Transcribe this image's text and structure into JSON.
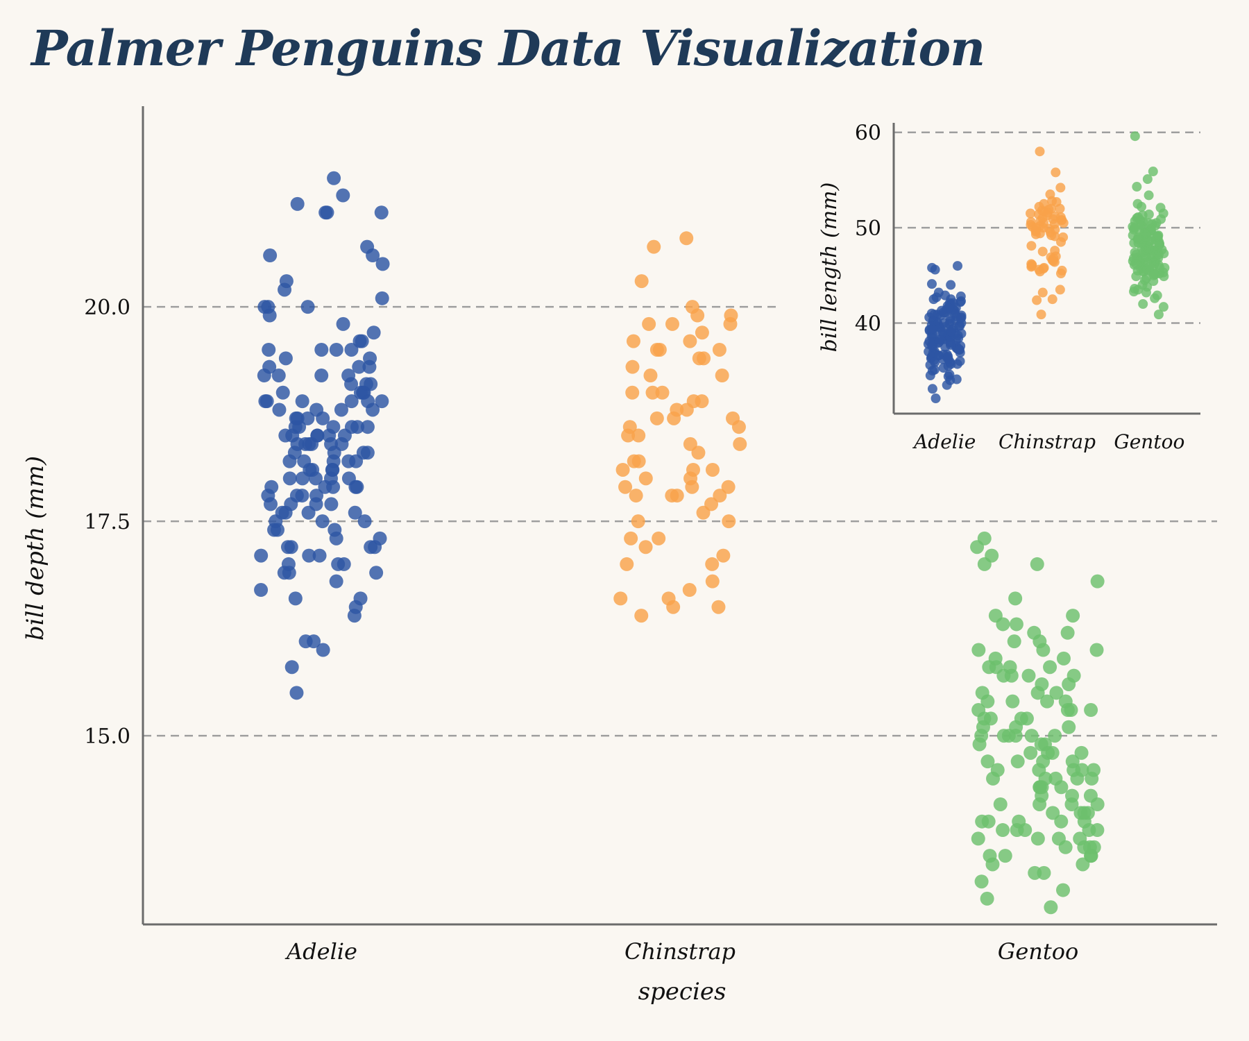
{
  "title": "Palmer Penguins Data Visualization",
  "colors": {
    "background": "#faf7f2",
    "title": "#1f3a58",
    "Adelie": "#2d56a3",
    "Chinstrap": "#f9a24b",
    "Gentoo": "#6cc06c",
    "axis": "#6b6b6b",
    "grid": "#9e9e9e"
  },
  "chart_data": [
    {
      "type": "scatter",
      "title": "",
      "xlabel": "species",
      "ylabel": "bill depth (mm)",
      "categories": [
        "Adelie",
        "Chinstrap",
        "Gentoo"
      ],
      "ylim": [
        12.8,
        22.0
      ],
      "yticks": [
        15.0,
        17.5,
        20.0
      ],
      "ytick_labels": [
        "15.0",
        "17.5",
        "20.0"
      ],
      "grid": "horizontal dashed",
      "series": [
        {
          "values": [
            21.5,
            21.2,
            21.1,
            21.1,
            21.3,
            21.1,
            20.7,
            20.6,
            20.6,
            20.5,
            20.3,
            20.2,
            20.1,
            20.0,
            20.0,
            20.0,
            19.9,
            19.8,
            19.7,
            19.6,
            19.5,
            19.5,
            19.5,
            19.5,
            19.4,
            19.4,
            19.3,
            19.3,
            19.2,
            19.2,
            19.2,
            19.1,
            19.1,
            19.0,
            19.0,
            18.9,
            18.9,
            18.9,
            18.8,
            18.8,
            18.7,
            18.7,
            18.6,
            18.6,
            18.6,
            18.5,
            18.5,
            18.5,
            18.4,
            18.4,
            18.4,
            18.3,
            18.3,
            18.2,
            18.2,
            18.1,
            18.1,
            18.0,
            18.0,
            17.9,
            17.9,
            17.9,
            17.8,
            17.8,
            17.7,
            17.7,
            17.6,
            17.6,
            17.5,
            17.5,
            17.4,
            17.3,
            17.2,
            17.2,
            17.1,
            17.1,
            17.0,
            17.0,
            16.9,
            16.9,
            16.8,
            16.7,
            16.6,
            16.5,
            16.4,
            16.1,
            16.1,
            16.0,
            15.8,
            15.5,
            19.0,
            18.6,
            18.2,
            17.8,
            18.9,
            18.5,
            18.0,
            17.6,
            19.6,
            18.7,
            17.2,
            18.8,
            17.9,
            18.4,
            17.1,
            18.1,
            17.4,
            18.9,
            18.3,
            17.7,
            18.6,
            19.1,
            18.0,
            17.3,
            18.5,
            17.0,
            19.2,
            18.4,
            17.9,
            18.7,
            16.9,
            18.2,
            17.5,
            18.8,
            17.6,
            18.1,
            19.3,
            18.5,
            17.8,
            18.6,
            17.2,
            18.3,
            19.0,
            17.7,
            18.0,
            18.9,
            17.4,
            18.4,
            16.6,
            18.2
          ],
          "name": "Adelie"
        },
        {
          "values": [
            20.8,
            20.7,
            20.3,
            20.0,
            19.9,
            19.9,
            19.8,
            19.8,
            19.7,
            19.6,
            19.5,
            19.5,
            19.5,
            19.4,
            19.3,
            19.2,
            19.0,
            19.0,
            18.9,
            18.8,
            18.8,
            18.7,
            18.7,
            18.6,
            18.5,
            18.4,
            18.3,
            18.2,
            18.1,
            18.1,
            18.0,
            17.9,
            17.9,
            17.8,
            17.8,
            17.8,
            17.7,
            17.5,
            17.5,
            17.3,
            17.3,
            17.2,
            17.0,
            17.0,
            16.8,
            16.7,
            16.6,
            16.6,
            16.5,
            16.5,
            16.4,
            18.0,
            18.5,
            17.9,
            19.6,
            18.7,
            19.4,
            18.2,
            17.1,
            19.0,
            18.4,
            17.8,
            19.2,
            18.6,
            17.6,
            19.8,
            18.9,
            18.1
          ],
          "name": "Chinstrap"
        },
        {
          "values": [
            17.3,
            17.2,
            17.1,
            17.0,
            17.0,
            16.8,
            16.6,
            16.4,
            16.3,
            16.3,
            16.2,
            16.1,
            16.0,
            15.9,
            15.8,
            15.8,
            15.7,
            15.7,
            15.6,
            15.5,
            15.4,
            15.4,
            15.3,
            15.2,
            15.2,
            15.1,
            15.0,
            15.0,
            15.0,
            14.9,
            14.8,
            14.7,
            14.6,
            14.6,
            14.5,
            14.5,
            14.4,
            14.3,
            14.2,
            14.2,
            14.1,
            14.0,
            14.0,
            13.9,
            13.9,
            13.8,
            13.7,
            13.7,
            13.6,
            13.5,
            13.4,
            13.3,
            13.2,
            13.1,
            13.0,
            15.0,
            14.6,
            15.3,
            14.1,
            13.8,
            15.5,
            14.8,
            13.6,
            14.4,
            15.1,
            14.0,
            13.9,
            15.7,
            14.7,
            14.3,
            13.7,
            15.2,
            14.5,
            16.0,
            14.2,
            13.5,
            15.4,
            14.9,
            14.0,
            15.8,
            13.8,
            14.6,
            15.0,
            16.1,
            14.4,
            13.9,
            15.6,
            14.8,
            14.1,
            13.6,
            15.3,
            14.5,
            16.2,
            14.7,
            15.9,
            13.4,
            14.3,
            15.5,
            14.9,
            14.2,
            15.1,
            16.4,
            13.7,
            14.6,
            15.2,
            14.0,
            15.7,
            13.8,
            14.4,
            15.0,
            14.8,
            13.6,
            15.4,
            16.0,
            14.1,
            14.5,
            15.8,
            13.9,
            14.7,
            15.3
          ],
          "name": "Gentoo"
        }
      ]
    },
    {
      "type": "scatter",
      "title": "",
      "xlabel": "",
      "ylabel": "bill length (mm)",
      "categories": [
        "Adelie",
        "Chinstrap",
        "Gentoo"
      ],
      "ylim": [
        30.5,
        61.0
      ],
      "yticks": [
        40,
        50,
        60
      ],
      "ytick_labels": [
        "40",
        "50",
        "60"
      ],
      "grid": "horizontal dashed",
      "placement": "top-right inset",
      "series": [
        {
          "values": [
            46.0,
            45.8,
            45.6,
            44.1,
            44.0,
            43.2,
            42.9,
            42.8,
            42.7,
            42.5,
            42.3,
            42.2,
            42.1,
            42.0,
            41.8,
            41.6,
            41.5,
            41.4,
            41.3,
            41.1,
            41.0,
            40.9,
            40.8,
            40.7,
            40.6,
            40.5,
            40.3,
            40.2,
            40.1,
            40.0,
            39.9,
            39.8,
            39.7,
            39.6,
            39.5,
            39.4,
            39.3,
            39.2,
            39.1,
            39.0,
            38.9,
            38.8,
            38.7,
            38.6,
            38.5,
            38.4,
            38.3,
            38.2,
            38.1,
            38.0,
            37.9,
            37.8,
            37.7,
            37.6,
            37.5,
            37.4,
            37.3,
            37.2,
            37.0,
            36.9,
            36.8,
            36.7,
            36.6,
            36.5,
            36.4,
            36.3,
            36.2,
            36.1,
            36.0,
            35.9,
            35.7,
            35.6,
            35.5,
            35.3,
            35.1,
            35.0,
            34.6,
            34.5,
            34.4,
            34.1,
            34.0,
            33.5,
            33.1,
            32.1,
            38.6,
            39.8,
            37.8,
            40.6,
            36.7,
            39.2,
            41.1,
            38.1,
            37.3,
            40.2,
            39.6,
            36.5,
            38.9,
            41.4,
            37.0,
            39.0,
            38.2,
            40.9,
            35.9,
            39.7,
            37.6,
            38.8,
            42.1,
            36.2,
            40.3,
            38.5,
            37.7,
            39.5,
            41.0,
            36.9,
            38.3,
            40.5,
            37.2,
            39.9,
            42.5,
            38.0,
            36.4,
            39.3,
            40.8,
            37.9,
            38.7,
            41.6,
            35.7,
            39.1,
            40.0,
            37.5,
            38.4,
            41.3,
            36.6,
            39.4
          ],
          "name": "Adelie"
        },
        {
          "values": [
            58.0,
            55.8,
            54.2,
            53.5,
            52.8,
            52.7,
            52.2,
            52.0,
            51.9,
            51.7,
            51.5,
            51.4,
            51.3,
            51.0,
            50.9,
            50.8,
            50.7,
            50.6,
            50.5,
            50.3,
            50.2,
            50.1,
            50.0,
            49.8,
            49.7,
            49.6,
            49.5,
            49.3,
            49.2,
            49.0,
            48.5,
            47.6,
            47.5,
            46.9,
            46.8,
            46.6,
            46.5,
            46.4,
            46.2,
            46.1,
            45.9,
            45.7,
            45.6,
            45.5,
            45.4,
            45.2,
            43.5,
            43.2,
            42.5,
            42.4,
            40.9,
            51.1,
            50.4,
            49.9,
            52.0,
            51.6,
            50.0,
            49.4,
            51.8,
            50.5,
            46.0,
            45.8,
            47.0,
            48.1,
            50.8,
            51.2,
            49.1,
            52.5
          ],
          "name": "Chinstrap"
        },
        {
          "values": [
            59.6,
            55.9,
            55.1,
            54.3,
            53.4,
            52.5,
            52.2,
            52.1,
            51.5,
            51.3,
            51.1,
            50.8,
            50.7,
            50.5,
            50.4,
            50.2,
            50.0,
            49.9,
            49.8,
            49.6,
            49.5,
            49.4,
            49.2,
            49.1,
            49.0,
            48.8,
            48.7,
            48.6,
            48.5,
            48.4,
            48.2,
            48.1,
            47.8,
            47.7,
            47.6,
            47.5,
            47.4,
            47.3,
            47.2,
            46.9,
            46.8,
            46.7,
            46.6,
            46.5,
            46.4,
            46.3,
            46.2,
            46.1,
            45.9,
            45.8,
            45.7,
            45.5,
            45.4,
            45.3,
            45.2,
            45.1,
            44.9,
            44.5,
            44.4,
            43.8,
            43.6,
            43.5,
            43.3,
            43.2,
            42.9,
            42.6,
            42.0,
            41.7,
            40.9,
            48.3,
            46.0,
            49.3,
            47.0,
            45.0,
            50.1,
            48.9,
            46.4,
            47.9,
            49.7,
            44.0,
            46.7,
            48.4,
            50.6,
            45.6,
            47.1,
            49.0,
            46.2,
            48.0,
            51.0,
            45.4,
            47.5,
            49.5,
            46.9,
            48.7,
            44.7,
            50.3,
            47.3,
            45.8,
            49.2,
            46.5,
            48.6,
            47.7,
            50.9,
            45.2,
            48.2,
            46.8,
            49.8,
            47.4,
            44.9,
            50.5,
            46.3,
            48.5,
            47.2,
            49.4,
            45.9,
            51.4,
            47.6,
            46.1,
            48.8,
            50.0,
            45.5,
            49.1,
            47.8
          ],
          "name": "Gentoo"
        }
      ]
    }
  ]
}
